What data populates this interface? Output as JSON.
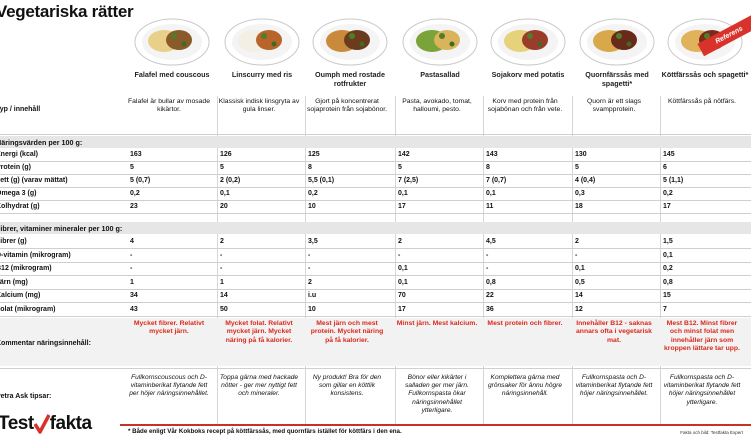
{
  "title": "Vegetariska rätter",
  "reference_badge": "Referens",
  "dishes": [
    {
      "name": "Falafel med couscous",
      "desc": "Falafel är bullar av mosade kikärtor.",
      "comment": "Mycket fibrer. Relativt mycket järn.",
      "tips": "Fullkornscouscous och D-vitaminberikat flytande fett per höjer näringsinnehållet."
    },
    {
      "name": "Linscurry med ris",
      "desc": "Klassisk indisk linsgryta av gula linser.",
      "comment": "Mycket folat. Relativt mycket järn. Mycket näring på få kalorier.",
      "tips": "Toppa gärna med hackade nötter - ger mer nyttigt fett och mineraler."
    },
    {
      "name": "Oumph med rostade rotfrukter",
      "desc": "Gjort på koncentrerat sojaprotein från sojabönor.",
      "comment": "Mest järn och mest protein. Mycket näring på få kalorier.",
      "tips": "Ny produkt! Bra för den som gillar en köttlik konsistens."
    },
    {
      "name": "Pastasallad",
      "desc": "Pasta, avokado, tomat, halloumi, pesto.",
      "comment": "Minst järn. Mest kalcium.",
      "tips": "Bönor eller kikärter i salladen ger mer järn. Fullkornspasta ökar näringsinnehållet ytterligare."
    },
    {
      "name": "Sojakorv med potatis",
      "desc": "Korv med protein från sojabönan och från vete.",
      "comment": "Mest protein och fibrer.",
      "tips": "Komplettera gärna med grönsaker för ännu högre näringsinnehåll."
    },
    {
      "name": "Quornfärssås med spagetti*",
      "desc": "Quorn är ett slags svampprotein.",
      "comment": "Innehåller B12 - saknas annars ofta i vegetarisk mat.",
      "tips": "Fullkornspasta och D-vitaminberikat flytande fett höjer näringsinnehållet."
    },
    {
      "name": "Köttfärssås och spagetti*",
      "desc": "Köttfärssås på nötfärs.",
      "comment": "Mest B12. Minst fibrer och minst folat men innehåller järn som kroppen lättare tar upp.",
      "tips": "Fullkornspasta och D-vitaminberikat flytande fett höjer näringsinnehållet ytterligare."
    }
  ],
  "labels": {
    "typ": "Typ / innehåll",
    "section1": "Näringsvärden per 100 g:",
    "section2": "Fibrer, vitaminer mineraler per 100 g:",
    "kommentar": "Kommentar näringsinnehåll:",
    "tips": "Petra Ask tipsar:"
  },
  "nutrients": [
    {
      "label": "Energi (kcal)",
      "values": [
        "163",
        "126",
        "125",
        "142",
        "143",
        "130",
        "145"
      ]
    },
    {
      "label": "Protein (g)",
      "values": [
        "5",
        "5",
        "8",
        "5",
        "8",
        "5",
        "6"
      ]
    },
    {
      "label": "Fett (g) (varav mättat)",
      "values": [
        "5 (0,7)",
        "2 (0,2)",
        "5,5 (0,1)",
        "7 (2,5)",
        "7 (0,7)",
        "4 (0,4)",
        "5 (1,1)"
      ]
    },
    {
      "label": "Omega 3 (g)",
      "values": [
        "0,2",
        "0,1",
        "0,2",
        "0,1",
        "0,1",
        "0,3",
        "0,2"
      ]
    },
    {
      "label": "Kolhydrat (g)",
      "values": [
        "23",
        "20",
        "10",
        "17",
        "11",
        "18",
        "17"
      ]
    }
  ],
  "minerals": [
    {
      "label": "Fibrer (g)",
      "values": [
        "4",
        "2",
        "3,5",
        "2",
        "4,5",
        "2",
        "1,5"
      ]
    },
    {
      "label": "D-vitamin (mikrogram)",
      "values": [
        "-",
        "-",
        "-",
        "-",
        "-",
        "-",
        "0,1"
      ]
    },
    {
      "label": "B12 (mikrogram)",
      "values": [
        "-",
        "-",
        "-",
        "0,1",
        "-",
        "0,1",
        "0,2"
      ]
    },
    {
      "label": "Järn (mg)",
      "values": [
        "1",
        "1",
        "2",
        "0,1",
        "0,8",
        "0,5",
        "0,8"
      ]
    },
    {
      "label": "Kalcium (mg)",
      "values": [
        "34",
        "14",
        "i.u",
        "70",
        "22",
        "14",
        "15"
      ]
    },
    {
      "label": "Folat (mikrogram)",
      "values": [
        "43",
        "50",
        "10",
        "17",
        "36",
        "12",
        "7"
      ]
    }
  ],
  "footnote": "* Både enligt Vår Kokboks recept på köttfärssås, med quornfärs istället för köttfärs i den ena.",
  "source": "Fakta och bild: Testfakta Expert",
  "logo": {
    "text1": "Test",
    "text2": "fakta",
    "check_color": "#d8322a"
  },
  "colors": {
    "accent": "#d9291c",
    "band": "#e6e6e6"
  }
}
